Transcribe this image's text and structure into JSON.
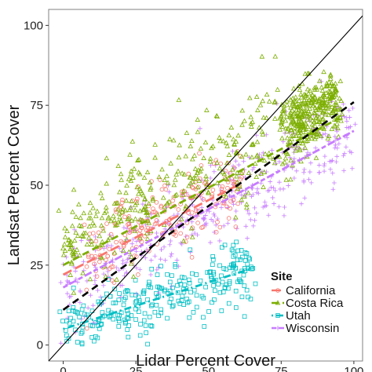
{
  "chart_data": {
    "type": "scatter",
    "xlabel": "Lidar Percent Cover",
    "ylabel": "Landsat Percent Cover",
    "xlim": [
      -5,
      103
    ],
    "ylim": [
      -5,
      105
    ],
    "x_ticks": [
      0,
      25,
      50,
      75,
      100
    ],
    "y_ticks": [
      0,
      25,
      50,
      75,
      100
    ],
    "x_tick_labels": [
      "0",
      "25",
      "50",
      "75",
      "100"
    ],
    "y_tick_labels": [
      "0",
      "25",
      "50",
      "75",
      "100"
    ],
    "grid": false,
    "legend": {
      "title": "Site",
      "position": "bottom-right"
    },
    "reference_lines": [
      {
        "kind": "one-to-one",
        "style": "solid",
        "color": "#000000",
        "from": [
          -5,
          -5
        ],
        "to": [
          103,
          103
        ]
      },
      {
        "kind": "overall-fit",
        "style": "dashed",
        "color": "#000000",
        "from": [
          0,
          11
        ],
        "to": [
          100,
          76
        ]
      }
    ],
    "series": [
      {
        "name": "California",
        "color": "#F8766D",
        "marker": "circle",
        "fit_style": "longdash",
        "fit": {
          "x": [
            0,
            60
          ],
          "y": [
            22,
            50
          ]
        },
        "clusters": [
          {
            "x": [
              8,
              62
            ],
            "y_center_at_x0": 24,
            "slope": 0.46,
            "spread": 6,
            "n": 220
          }
        ]
      },
      {
        "name": "Costa Rica",
        "color": "#7CAE00",
        "marker": "triangle",
        "fit_style": "dashed",
        "fit": {
          "x": [
            0,
            95
          ],
          "y": [
            25,
            71
          ]
        },
        "clusters": [
          {
            "x": [
              0,
              80
            ],
            "y_center_at_x0": 30,
            "slope": 0.5,
            "spread": 8,
            "n": 380
          },
          {
            "x": [
              78,
              95
            ],
            "y_center_at_x0": 30,
            "slope": 0.5,
            "spread": 5,
            "n": 320
          }
        ]
      },
      {
        "name": "Utah",
        "color": "#00BFC4",
        "marker": "square",
        "fit_style": "dotdash",
        "fit": {
          "x": [
            0,
            65
          ],
          "y": [
            5,
            24
          ]
        },
        "clusters": [
          {
            "x": [
              0,
              65
            ],
            "y_center_at_x0": 5,
            "slope": 0.3,
            "spread": 5,
            "n": 270
          }
        ]
      },
      {
        "name": "Wisconsin",
        "color": "#C77CFF",
        "marker": "plus",
        "fit_style": "twodash",
        "fit": {
          "x": [
            0,
            100
          ],
          "y": [
            18,
            67
          ]
        },
        "clusters": [
          {
            "x": [
              0,
              100
            ],
            "y_center_at_x0": 18,
            "slope": 0.49,
            "spread": 7,
            "n": 420
          }
        ]
      }
    ]
  }
}
